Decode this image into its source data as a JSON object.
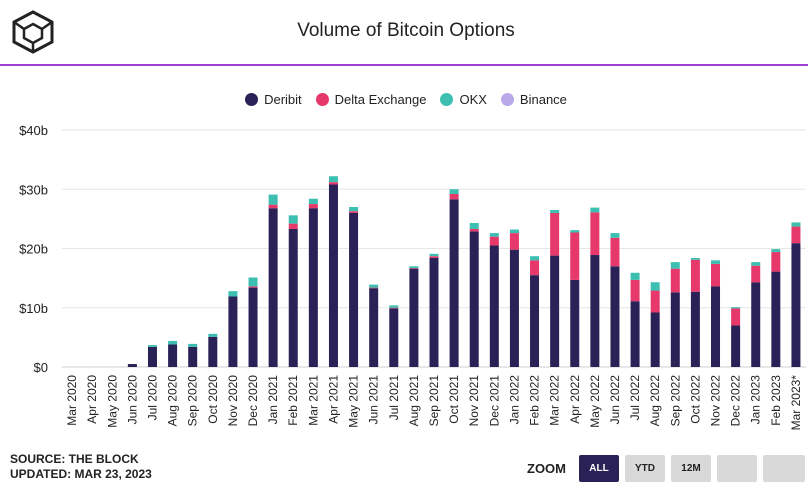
{
  "title": "Volume of Bitcoin Options",
  "legend": [
    {
      "name": "Deribit",
      "color": "#2a2257"
    },
    {
      "name": "Delta Exchange",
      "color": "#e6386a"
    },
    {
      "name": "OKX",
      "color": "#3cbfb0"
    },
    {
      "name": "Binance",
      "color": "#b9a9e8"
    }
  ],
  "source": {
    "line1": "SOURCE: THE BLOCK",
    "line2": "UPDATED: MAR 23, 2023"
  },
  "zoom": {
    "label": "ZOOM",
    "buttons": [
      "ALL",
      "YTD",
      "12M",
      "",
      ""
    ],
    "active": "ALL"
  },
  "chart_data": {
    "type": "bar",
    "stacked": true,
    "ylim": [
      0,
      40
    ],
    "yticks": [
      "$0",
      "$10b",
      "$20b",
      "$30b",
      "$40b"
    ],
    "categories": [
      "Mar 2020",
      "Apr 2020",
      "May 2020",
      "Jun 2020",
      "Jul 2020",
      "Aug 2020",
      "Sep 2020",
      "Oct 2020",
      "Nov 2020",
      "Dec 2020",
      "Jan 2021",
      "Feb 2021",
      "Mar 2021",
      "Apr 2021",
      "May 2021",
      "Jun 2021",
      "Jul 2021",
      "Aug 2021",
      "Sep 2021",
      "Oct 2021",
      "Nov 2021",
      "Dec 2021",
      "Jan 2022",
      "Feb 2022",
      "Mar 2022",
      "Apr 2022",
      "May 2022",
      "Jun 2022",
      "Jul 2022",
      "Aug 2022",
      "Sep 2022",
      "Oct 2022",
      "Nov 2022",
      "Dec 2022",
      "Jan 2023",
      "Feb 2023",
      "Mar 2023*"
    ],
    "series": [
      {
        "name": "Deribit",
        "color": "#2a2257",
        "values": [
          0,
          0,
          0,
          0.5,
          3.4,
          3.8,
          3.4,
          5.1,
          11.9,
          13.4,
          26.8,
          23.3,
          26.8,
          30.8,
          26.0,
          13.3,
          9.9,
          16.6,
          18.4,
          28.3,
          22.9,
          20.5,
          19.8,
          15.5,
          18.8,
          14.7,
          18.9,
          17.0,
          11.1,
          9.2,
          12.6,
          12.7,
          13.6,
          7.0,
          14.3,
          16.1,
          20.9
        ]
      },
      {
        "name": "Delta Exchange",
        "color": "#e6386a",
        "values": [
          0,
          0,
          0,
          0,
          0,
          0,
          0,
          0,
          0,
          0.2,
          0.6,
          0.9,
          0.7,
          0.4,
          0.3,
          0.1,
          0.1,
          0.1,
          0.3,
          0.9,
          0.4,
          1.5,
          2.8,
          2.5,
          7.2,
          8.0,
          7.2,
          4.8,
          3.6,
          3.7,
          4.0,
          5.4,
          3.8,
          2.9,
          2.8,
          3.3,
          2.8
        ]
      },
      {
        "name": "OKX",
        "color": "#3cbfb0",
        "values": [
          0,
          0,
          0,
          0,
          0.3,
          0.6,
          0.5,
          0.5,
          0.9,
          1.5,
          1.7,
          1.4,
          0.9,
          1.0,
          0.7,
          0.5,
          0.4,
          0.3,
          0.4,
          0.8,
          1.0,
          0.6,
          0.6,
          0.7,
          0.5,
          0.4,
          0.8,
          0.8,
          1.2,
          1.4,
          1.1,
          0.3,
          0.6,
          0.2,
          0.6,
          0.5,
          0.7
        ]
      },
      {
        "name": "Binance",
        "color": "#b9a9e8",
        "values": [
          0,
          0,
          0,
          0,
          0,
          0,
          0,
          0,
          0,
          0,
          0,
          0,
          0,
          0,
          0,
          0,
          0,
          0,
          0,
          0,
          0,
          0,
          0,
          0,
          0,
          0,
          0,
          0,
          0,
          0,
          0,
          0,
          0,
          0,
          0,
          0,
          0
        ]
      }
    ]
  }
}
